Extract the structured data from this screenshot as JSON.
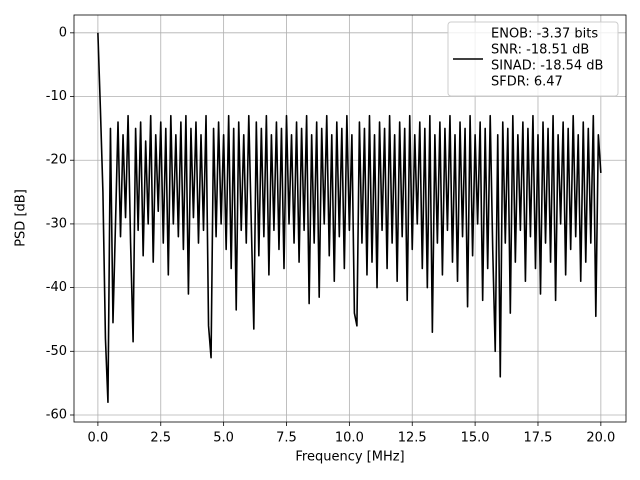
{
  "chart_data": {
    "type": "line",
    "xlabel": "Frequency [MHz]",
    "ylabel": "PSD [dB]",
    "xlim": [
      -0.95,
      21
    ],
    "ylim": [
      -61.1,
      2.8
    ],
    "xticks": [
      {
        "value": 0,
        "label": "0.0"
      },
      2.5,
      {
        "value": 5,
        "label": "5.0"
      },
      7.5,
      {
        "value": 10,
        "label": "10.0"
      },
      12.5,
      {
        "value": 15,
        "label": "15.0"
      },
      17.5,
      {
        "value": 20,
        "label": "20.0"
      }
    ],
    "yticks": [
      0,
      -10,
      -20,
      -30,
      -40,
      -50,
      -60
    ],
    "grid": true,
    "legend": "upper right",
    "x": [
      0,
      0.1,
      0.2,
      0.3,
      0.4,
      0.5,
      0.6,
      0.7,
      0.8,
      0.9,
      1,
      1.1,
      1.2,
      1.3,
      1.4,
      1.5,
      1.6,
      1.7,
      1.8,
      1.9,
      2,
      2.1,
      2.2,
      2.3,
      2.4,
      2.5,
      2.6,
      2.7,
      2.8,
      2.9,
      3,
      3.1,
      3.2,
      3.3,
      3.4,
      3.5,
      3.6,
      3.7,
      3.8,
      3.9,
      4,
      4.1,
      4.2,
      4.3,
      4.4,
      4.5,
      4.6,
      4.7,
      4.8,
      4.9,
      5,
      5.1,
      5.2,
      5.3,
      5.4,
      5.5,
      5.6,
      5.7,
      5.8,
      5.9,
      6,
      6.1,
      6.2,
      6.3,
      6.4,
      6.5,
      6.6,
      6.7,
      6.8,
      6.9,
      7,
      7.1,
      7.2,
      7.3,
      7.4,
      7.5,
      7.6,
      7.7,
      7.8,
      7.9,
      8,
      8.1,
      8.2,
      8.3,
      8.4,
      8.5,
      8.6,
      8.7,
      8.8,
      8.9,
      9,
      9.1,
      9.2,
      9.3,
      9.4,
      9.5,
      9.6,
      9.7,
      9.8,
      9.9,
      10,
      10.1,
      10.2,
      10.3,
      10.4,
      10.5,
      10.6,
      10.7,
      10.8,
      10.9,
      11,
      11.1,
      11.2,
      11.3,
      11.4,
      11.5,
      11.6,
      11.7,
      11.8,
      11.9,
      12,
      12.1,
      12.2,
      12.3,
      12.4,
      12.5,
      12.6,
      12.7,
      12.8,
      12.9,
      13,
      13.1,
      13.2,
      13.3,
      13.4,
      13.5,
      13.6,
      13.7,
      13.8,
      13.9,
      14,
      14.1,
      14.2,
      14.3,
      14.4,
      14.5,
      14.6,
      14.7,
      14.8,
      14.9,
      15,
      15.1,
      15.2,
      15.3,
      15.4,
      15.5,
      15.6,
      15.7,
      15.8,
      15.9,
      16,
      16.1,
      16.2,
      16.3,
      16.4,
      16.5,
      16.6,
      16.7,
      16.8,
      16.9,
      17,
      17.1,
      17.2,
      17.3,
      17.4,
      17.5,
      17.6,
      17.7,
      17.8,
      17.9,
      18,
      18.1,
      18.2,
      18.3,
      18.4,
      18.5,
      18.6,
      18.7,
      18.8,
      18.9,
      19,
      19.1,
      19.2,
      19.3,
      19.4,
      19.5,
      19.6,
      19.7,
      19.8,
      19.9,
      20
    ],
    "series": [
      {
        "name": [
          "ENOB: -3.37 bits",
          "SNR: -18.51 dB",
          "SINAD: -18.54 dB",
          "SFDR: 6.47"
        ],
        "color": "#000000",
        "values": [
          0,
          -12,
          -25,
          -48,
          -58,
          -15,
          -45.5,
          -30,
          -14,
          -32,
          -16,
          -29,
          -13,
          -33,
          -48.5,
          -15,
          -31,
          -14,
          -35,
          -17,
          -30,
          -13,
          -36,
          -16,
          -28,
          -14,
          -33,
          -15,
          -38,
          -13,
          -30,
          -16,
          -32,
          -14,
          -34,
          -13,
          -41,
          -15,
          -29,
          -14,
          -33,
          -16,
          -31,
          -13,
          -46,
          -51,
          -15,
          -32,
          -14,
          -30,
          -16,
          -34,
          -13,
          -37,
          -15,
          -43.5,
          -14,
          -31,
          -16,
          -33,
          -13,
          -30,
          -46.5,
          -14,
          -35,
          -15,
          -32,
          -13,
          -38,
          -16,
          -31,
          -14,
          -34,
          -15,
          -37,
          -13,
          -30,
          -16,
          -33,
          -14,
          -36,
          -15,
          -31,
          -13,
          -42.5,
          -16,
          -33,
          -14,
          -41.5,
          -15,
          -30,
          -13,
          -35,
          -16,
          -39,
          -14,
          -32,
          -15,
          -37,
          -13,
          -31,
          -16,
          -44,
          -46,
          -14,
          -33,
          -15,
          -38,
          -13,
          -36,
          -16,
          -40,
          -14,
          -31,
          -15,
          -37,
          -13,
          -33,
          -16,
          -39,
          -14,
          -32,
          -15,
          -42,
          -13,
          -34,
          -16,
          -30,
          -14,
          -37,
          -15,
          -40,
          -13,
          -47,
          -16,
          -33,
          -14,
          -38,
          -15,
          -31,
          -13,
          -36,
          -16,
          -39,
          -14,
          -32,
          -15,
          -43,
          -13,
          -35,
          -16,
          -30,
          -14,
          -42,
          -15,
          -37,
          -13,
          -34,
          -50,
          -16,
          -54,
          -14,
          -33,
          -15,
          -44,
          -13,
          -36,
          -16,
          -31,
          -14,
          -39,
          -15,
          -32,
          -13,
          -37,
          -16,
          -41,
          -14,
          -33,
          -15,
          -36,
          -13,
          -42,
          -16,
          -30,
          -14,
          -38,
          -15,
          -34,
          -13,
          -32,
          -16,
          -39,
          -14,
          -36,
          -15,
          -33,
          -13,
          -44.5,
          -16,
          -22
        ]
      }
    ]
  }
}
